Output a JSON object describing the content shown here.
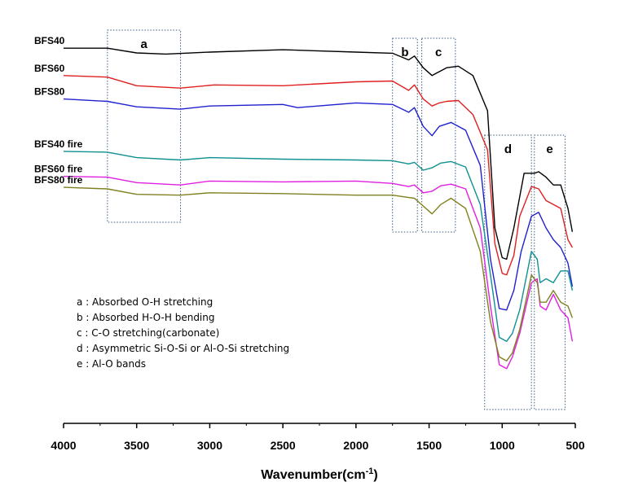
{
  "chart_data": {
    "type": "line",
    "title": "",
    "xlabel": "Wavenumber(cm",
    "xlabel_sup": "-1",
    "xlabel_close": ")",
    "ylabel": "",
    "x_reversed": true,
    "xlim": [
      4000,
      500
    ],
    "xticks": [
      "4000",
      "3500",
      "3000",
      "2500",
      "2000",
      "1500",
      "1000",
      "500"
    ],
    "grid": false,
    "series": [
      {
        "name": "BFS40",
        "color": "#000000",
        "points": [
          [
            4000,
            0.0
          ],
          [
            3700,
            0.0
          ],
          [
            3500,
            -0.06
          ],
          [
            3300,
            -0.075
          ],
          [
            3000,
            -0.05
          ],
          [
            2500,
            -0.02
          ],
          [
            2000,
            -0.05
          ],
          [
            1750,
            -0.065
          ],
          [
            1640,
            -0.15
          ],
          [
            1600,
            -0.1
          ],
          [
            1540,
            -0.25
          ],
          [
            1480,
            -0.35
          ],
          [
            1430,
            -0.3
          ],
          [
            1380,
            -0.25
          ],
          [
            1300,
            -0.23
          ],
          [
            1200,
            -0.35
          ],
          [
            1100,
            -0.8
          ],
          [
            1050,
            -2.3
          ],
          [
            1000,
            -2.68
          ],
          [
            970,
            -2.7
          ],
          [
            920,
            -2.3
          ],
          [
            850,
            -1.6
          ],
          [
            780,
            -1.6
          ],
          [
            750,
            -1.58
          ],
          [
            700,
            -1.65
          ],
          [
            650,
            -1.75
          ],
          [
            600,
            -1.75
          ],
          [
            550,
            -2.05
          ],
          [
            520,
            -2.35
          ]
        ]
      },
      {
        "name": "BFS60",
        "color": "#e02020",
        "points": [
          [
            4000,
            -0.35
          ],
          [
            3700,
            -0.37
          ],
          [
            3500,
            -0.48
          ],
          [
            3200,
            -0.51
          ],
          [
            2970,
            -0.47
          ],
          [
            2500,
            -0.48
          ],
          [
            2000,
            -0.43
          ],
          [
            1750,
            -0.42
          ],
          [
            1640,
            -0.54
          ],
          [
            1600,
            -0.47
          ],
          [
            1540,
            -0.65
          ],
          [
            1480,
            -0.74
          ],
          [
            1430,
            -0.7
          ],
          [
            1380,
            -0.68
          ],
          [
            1300,
            -0.67
          ],
          [
            1200,
            -0.85
          ],
          [
            1100,
            -1.3
          ],
          [
            1050,
            -2.5
          ],
          [
            1000,
            -2.88
          ],
          [
            970,
            -2.9
          ],
          [
            920,
            -2.65
          ],
          [
            880,
            -2.15
          ],
          [
            800,
            -1.77
          ],
          [
            750,
            -1.8
          ],
          [
            700,
            -1.95
          ],
          [
            600,
            -2.05
          ],
          [
            550,
            -2.45
          ],
          [
            520,
            -2.55
          ]
        ]
      },
      {
        "name": "BFS80",
        "color": "#2020d0",
        "points": [
          [
            4000,
            -0.65
          ],
          [
            3700,
            -0.68
          ],
          [
            3500,
            -0.75
          ],
          [
            3200,
            -0.78
          ],
          [
            3000,
            -0.74
          ],
          [
            2500,
            -0.72
          ],
          [
            2400,
            -0.76
          ],
          [
            2000,
            -0.7
          ],
          [
            1750,
            -0.72
          ],
          [
            1640,
            -0.82
          ],
          [
            1600,
            -0.76
          ],
          [
            1540,
            -1.0
          ],
          [
            1480,
            -1.12
          ],
          [
            1430,
            -1.0
          ],
          [
            1350,
            -0.95
          ],
          [
            1250,
            -1.05
          ],
          [
            1150,
            -1.5
          ],
          [
            1080,
            -2.7
          ],
          [
            1020,
            -3.33
          ],
          [
            970,
            -3.35
          ],
          [
            920,
            -3.1
          ],
          [
            870,
            -2.6
          ],
          [
            800,
            -2.15
          ],
          [
            750,
            -2.1
          ],
          [
            700,
            -2.3
          ],
          [
            650,
            -2.45
          ],
          [
            600,
            -2.55
          ],
          [
            550,
            -2.75
          ],
          [
            520,
            -3.05
          ]
        ]
      },
      {
        "name": "BFS40 fire",
        "color": "#109090",
        "points": [
          [
            4000,
            -1.32
          ],
          [
            3700,
            -1.33
          ],
          [
            3500,
            -1.4
          ],
          [
            3200,
            -1.43
          ],
          [
            3000,
            -1.4
          ],
          [
            2500,
            -1.42
          ],
          [
            2000,
            -1.43
          ],
          [
            1750,
            -1.44
          ],
          [
            1640,
            -1.48
          ],
          [
            1600,
            -1.46
          ],
          [
            1540,
            -1.56
          ],
          [
            1480,
            -1.53
          ],
          [
            1420,
            -1.47
          ],
          [
            1350,
            -1.45
          ],
          [
            1250,
            -1.52
          ],
          [
            1150,
            -2.0
          ],
          [
            1080,
            -2.9
          ],
          [
            1020,
            -3.7
          ],
          [
            970,
            -3.75
          ],
          [
            930,
            -3.65
          ],
          [
            880,
            -3.35
          ],
          [
            800,
            -2.6
          ],
          [
            760,
            -2.7
          ],
          [
            740,
            -3.0
          ],
          [
            700,
            -2.95
          ],
          [
            650,
            -3.0
          ],
          [
            600,
            -2.85
          ],
          [
            550,
            -2.85
          ],
          [
            520,
            -3.1
          ]
        ]
      },
      {
        "name": "BFS60 fire",
        "color": "#e020e0",
        "points": [
          [
            4000,
            -1.64
          ],
          [
            3700,
            -1.65
          ],
          [
            3500,
            -1.72
          ],
          [
            3200,
            -1.75
          ],
          [
            3000,
            -1.7
          ],
          [
            2500,
            -1.71
          ],
          [
            2000,
            -1.7
          ],
          [
            1750,
            -1.73
          ],
          [
            1640,
            -1.77
          ],
          [
            1600,
            -1.75
          ],
          [
            1540,
            -1.85
          ],
          [
            1480,
            -1.83
          ],
          [
            1420,
            -1.76
          ],
          [
            1350,
            -1.74
          ],
          [
            1250,
            -1.8
          ],
          [
            1150,
            -2.3
          ],
          [
            1080,
            -3.3
          ],
          [
            1020,
            -4.05
          ],
          [
            970,
            -4.1
          ],
          [
            930,
            -3.95
          ],
          [
            880,
            -3.65
          ],
          [
            800,
            -3.0
          ],
          [
            760,
            -2.95
          ],
          [
            740,
            -3.3
          ],
          [
            700,
            -3.35
          ],
          [
            650,
            -3.15
          ],
          [
            600,
            -3.35
          ],
          [
            550,
            -3.45
          ],
          [
            520,
            -3.75
          ]
        ]
      },
      {
        "name": "BFS80 fire",
        "color": "#808020",
        "points": [
          [
            4000,
            -1.78
          ],
          [
            3700,
            -1.8
          ],
          [
            3500,
            -1.87
          ],
          [
            3200,
            -1.88
          ],
          [
            3000,
            -1.85
          ],
          [
            2500,
            -1.86
          ],
          [
            2000,
            -1.88
          ],
          [
            1750,
            -1.88
          ],
          [
            1640,
            -1.91
          ],
          [
            1600,
            -1.92
          ],
          [
            1540,
            -2.02
          ],
          [
            1480,
            -2.12
          ],
          [
            1420,
            -2.0
          ],
          [
            1350,
            -1.92
          ],
          [
            1250,
            -2.05
          ],
          [
            1150,
            -2.6
          ],
          [
            1080,
            -3.5
          ],
          [
            1020,
            -3.95
          ],
          [
            970,
            -4.0
          ],
          [
            930,
            -3.9
          ],
          [
            880,
            -3.6
          ],
          [
            800,
            -2.9
          ],
          [
            760,
            -3.0
          ],
          [
            740,
            -3.25
          ],
          [
            700,
            -3.25
          ],
          [
            650,
            -3.1
          ],
          [
            600,
            -3.25
          ],
          [
            550,
            -3.3
          ],
          [
            520,
            -3.45
          ]
        ]
      }
    ],
    "regions": [
      {
        "id": "a",
        "label": "a",
        "x_range": [
          3700,
          3200
        ]
      },
      {
        "id": "b",
        "label": "b",
        "x_range": [
          1750,
          1580
        ]
      },
      {
        "id": "c",
        "label": "c",
        "x_range": [
          1550,
          1320
        ]
      },
      {
        "id": "d",
        "label": "d",
        "x_range": [
          1120,
          800
        ]
      },
      {
        "id": "e",
        "label": "e",
        "x_range": [
          780,
          570
        ]
      }
    ],
    "annotations": [
      "a : Absorbed O-H stretching",
      "b : Absorbed H-O-H bending",
      "c : C-O stretching(carbonate)",
      "d : Asymmetric  Si-O-Si  or  Al-O-Si  stretching",
      "e : Al-O bands"
    ]
  }
}
